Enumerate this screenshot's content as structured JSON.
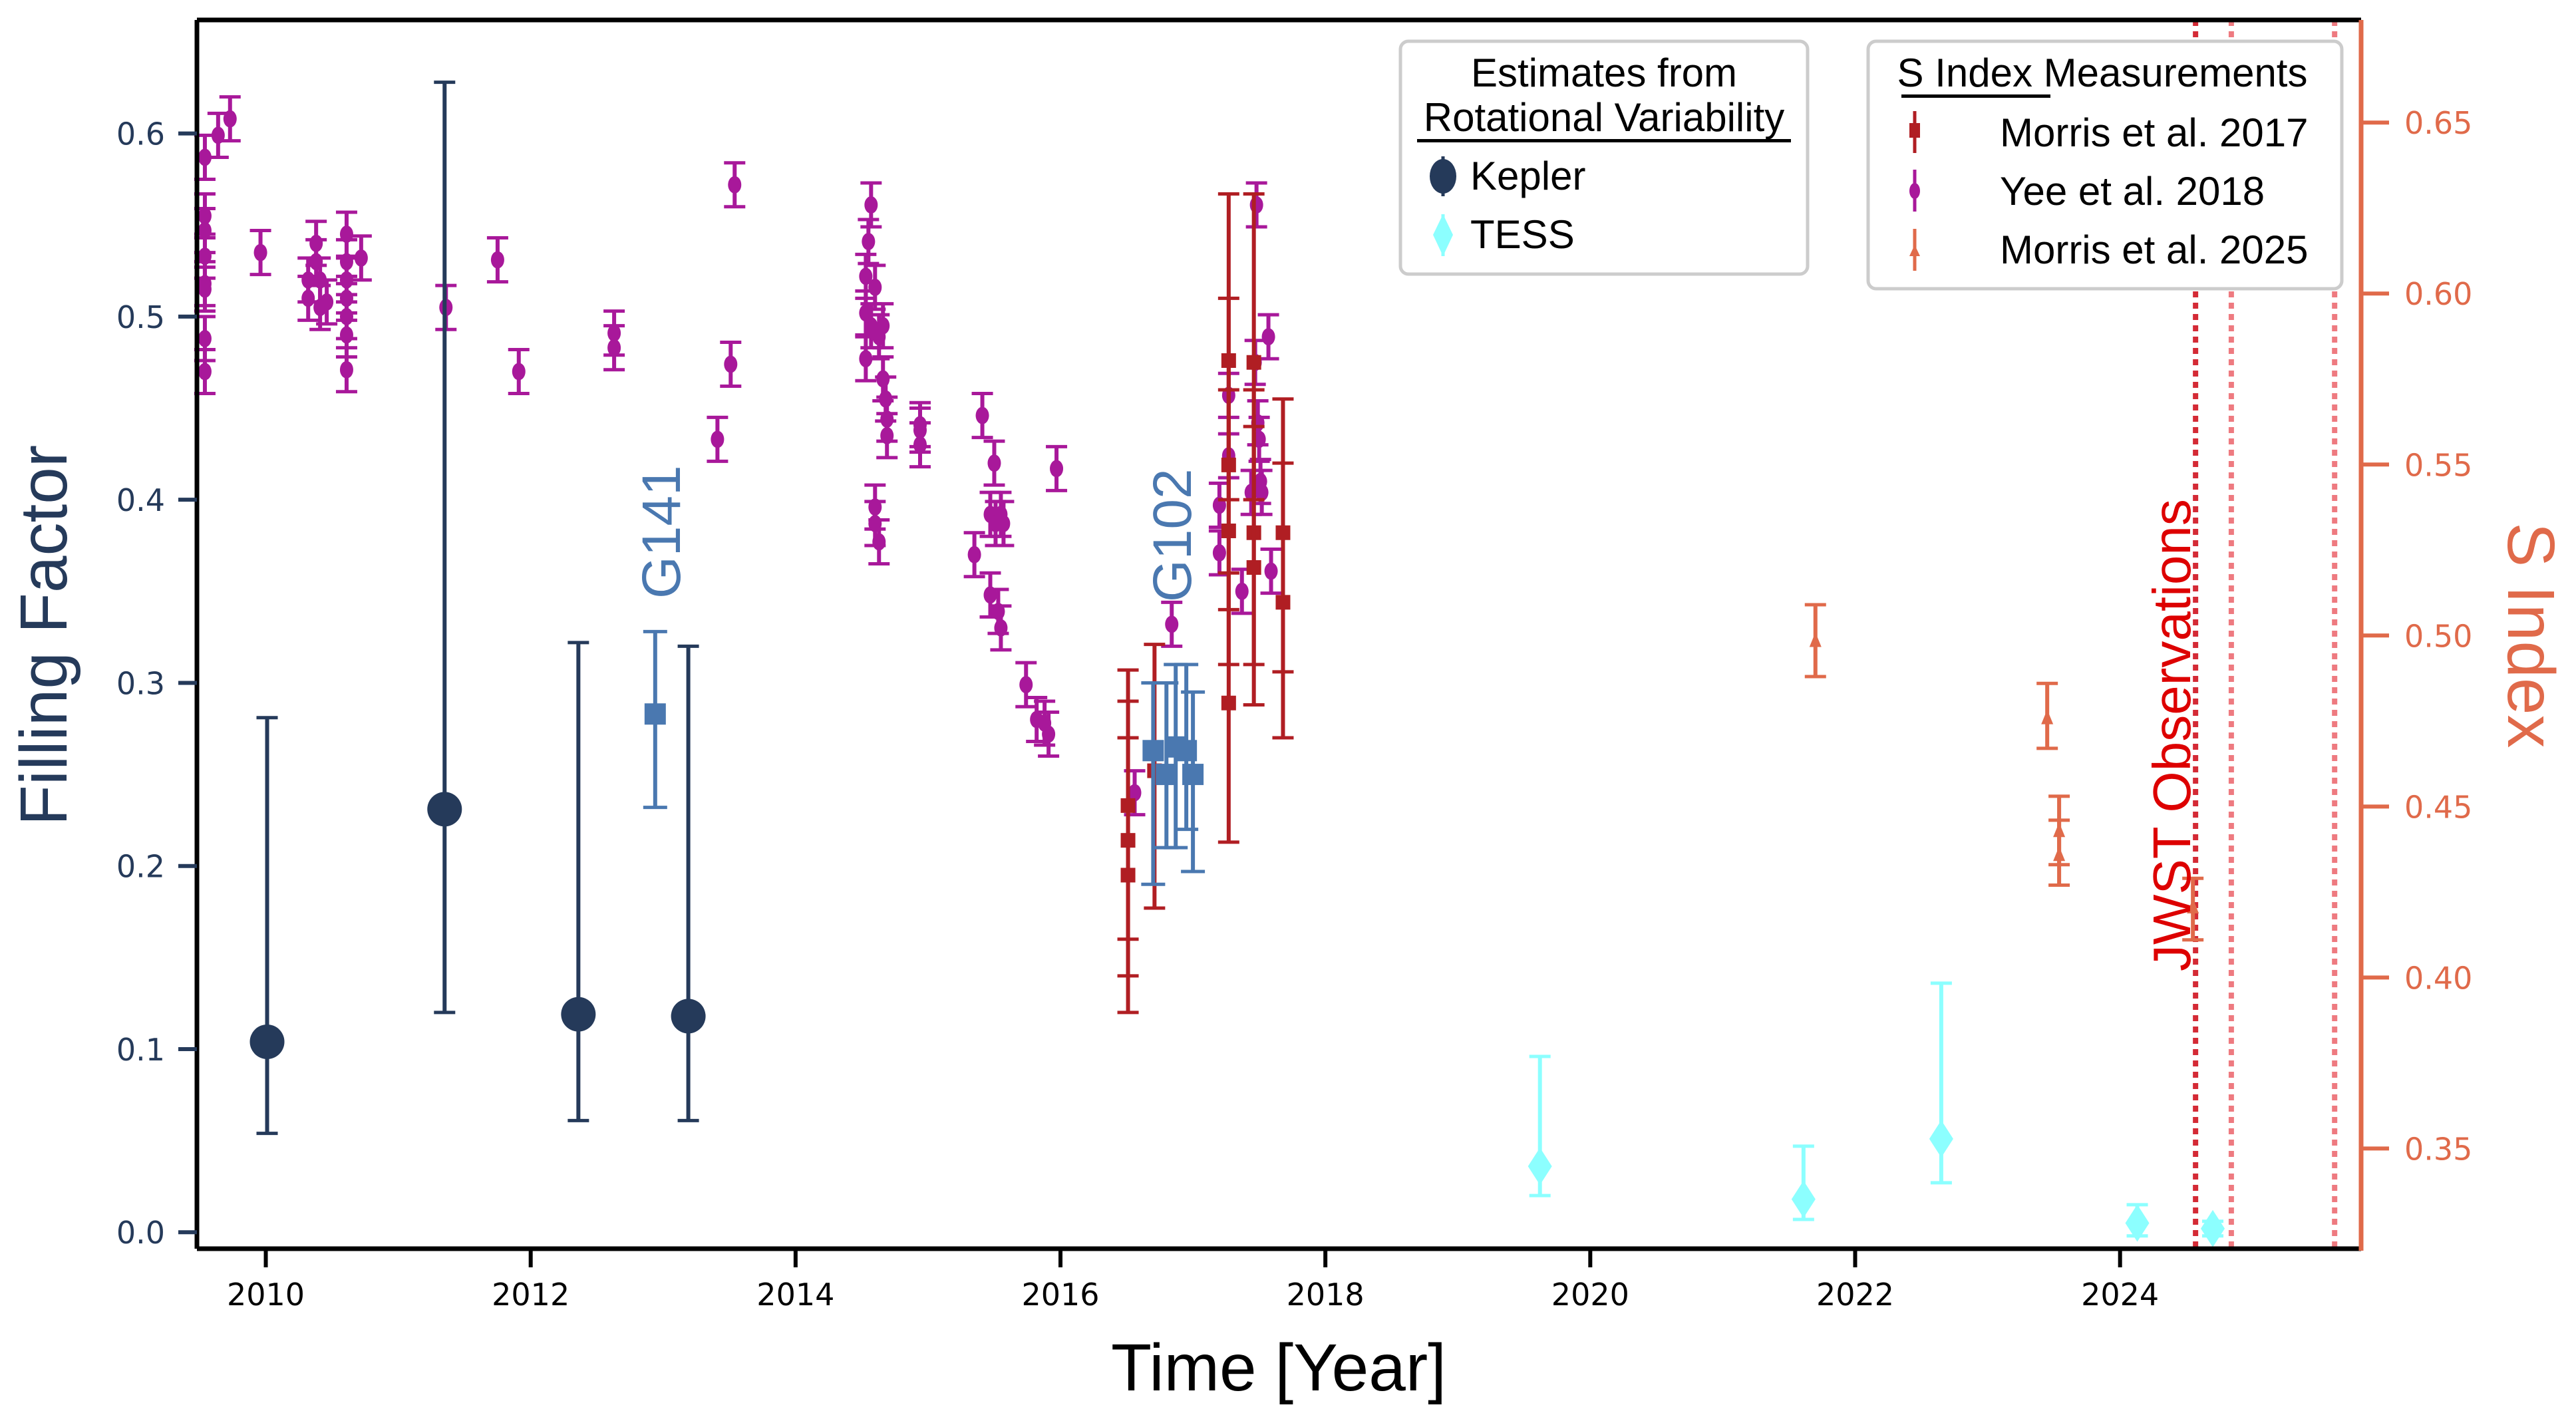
{
  "chart_data": {
    "type": "scatter",
    "xlabel": "Time [Year]",
    "ylabel": "Filling Factor",
    "y2label": "S Index",
    "xlim": [
      2009.48,
      2025.82
    ],
    "ylim": [
      -0.009,
      0.662
    ],
    "y2lim": [
      0.3207,
      0.68
    ],
    "xticks": [
      2010,
      2012,
      2014,
      2016,
      2018,
      2020,
      2022,
      2024
    ],
    "yticks": [
      "0.0",
      "0.1",
      "0.2",
      "0.3",
      "0.4",
      "0.5",
      "0.6"
    ],
    "y2ticks": [
      "0.35",
      "0.40",
      "0.45",
      "0.50",
      "0.55",
      "0.60",
      "0.65"
    ],
    "grid": false,
    "colors": {
      "kepler": "#253a5a",
      "hst": "#4a78b0",
      "tess": "#8cffff",
      "morris2017": "#b01e23",
      "yee2018": "#a8189a",
      "morris2025": "#e06a4a",
      "right_axis": "#e06a4a",
      "jwst": "#e0202a"
    },
    "legends": [
      {
        "title_lines": [
          "Estimates from",
          "Rotational Variability"
        ],
        "position": "top-center",
        "entries": [
          "Kepler",
          "TESS"
        ]
      },
      {
        "title_lines": [
          "S Index Measurements"
        ],
        "position": "top-right",
        "entries": [
          "Morris et al. 2017",
          "Yee et al. 2018",
          "Morris et al. 2025"
        ]
      }
    ],
    "annotations": {
      "g141": "G141",
      "g102": "G102",
      "jwst": "JWST Observations"
    },
    "jwst_observations": [
      2024.57,
      2024.84,
      2025.62
    ],
    "series": [
      {
        "name": "Kepler",
        "axis": "left",
        "marker": "circle",
        "points": [
          [
            2010.01,
            0.104,
            0.054,
            0.281
          ],
          [
            2011.35,
            0.231,
            0.12,
            0.628
          ],
          [
            2012.36,
            0.119,
            0.061,
            0.322
          ],
          [
            2013.19,
            0.118,
            0.061,
            0.32
          ]
        ]
      },
      {
        "key": "hst",
        "axis": "left",
        "marker": "square",
        "points": [
          [
            2012.94,
            0.283,
            0.232,
            0.328
          ],
          [
            2016.7,
            0.263,
            0.19,
            0.3
          ],
          [
            2016.8,
            0.25,
            0.21,
            0.3
          ],
          [
            2016.87,
            0.265,
            0.21,
            0.31
          ],
          [
            2016.95,
            0.263,
            0.22,
            0.31
          ],
          [
            2017.0,
            0.25,
            0.197,
            0.295
          ]
        ]
      },
      {
        "name": "TESS",
        "axis": "left",
        "marker": "diamond",
        "points": [
          [
            2019.62,
            0.036,
            0.02,
            0.096
          ],
          [
            2021.61,
            0.018,
            0.007,
            0.047
          ],
          [
            2022.65,
            0.051,
            0.027,
            0.136
          ],
          [
            2024.13,
            0.005,
            -0.002,
            0.015
          ],
          [
            2024.7,
            0.002,
            -0.002,
            0.006
          ]
        ]
      },
      {
        "name": "Morris et al. 2017",
        "axis": "left",
        "marker": "square",
        "points": [
          [
            2016.51,
            0.233,
            0.16,
            0.307
          ],
          [
            2016.51,
            0.214,
            0.14,
            0.29
          ],
          [
            2016.51,
            0.195,
            0.12,
            0.27
          ],
          [
            2016.71,
            0.252,
            0.177,
            0.321
          ],
          [
            2017.27,
            0.476,
            0.4,
            0.567
          ],
          [
            2017.27,
            0.419,
            0.34,
            0.51
          ],
          [
            2017.27,
            0.383,
            0.31,
            0.46
          ],
          [
            2017.27,
            0.289,
            0.213,
            0.36
          ],
          [
            2017.46,
            0.475,
            0.4,
            0.567
          ],
          [
            2017.46,
            0.382,
            0.31,
            0.46
          ],
          [
            2017.46,
            0.363,
            0.288,
            0.44
          ],
          [
            2017.68,
            0.382,
            0.306,
            0.455
          ],
          [
            2017.68,
            0.344,
            0.27,
            0.42
          ]
        ]
      },
      {
        "name": "Yee et al. 2018",
        "axis": "left",
        "marker": "circle",
        "yerr": 0.012,
        "points": [
          [
            2009.54,
            0.587
          ],
          [
            2009.54,
            0.555
          ],
          [
            2009.54,
            0.547
          ],
          [
            2009.54,
            0.533
          ],
          [
            2009.54,
            0.518
          ],
          [
            2009.54,
            0.515
          ],
          [
            2009.54,
            0.488
          ],
          [
            2009.54,
            0.47
          ],
          [
            2009.64,
            0.599
          ],
          [
            2009.73,
            0.608
          ],
          [
            2009.96,
            0.535
          ],
          [
            2010.32,
            0.52
          ],
          [
            2010.32,
            0.51
          ],
          [
            2010.38,
            0.53
          ],
          [
            2010.38,
            0.54
          ],
          [
            2010.41,
            0.505
          ],
          [
            2010.41,
            0.52
          ],
          [
            2010.46,
            0.508
          ],
          [
            2010.61,
            0.545
          ],
          [
            2010.61,
            0.53
          ],
          [
            2010.61,
            0.52
          ],
          [
            2010.61,
            0.51
          ],
          [
            2010.61,
            0.5
          ],
          [
            2010.61,
            0.49
          ],
          [
            2010.61,
            0.471
          ],
          [
            2010.72,
            0.532
          ],
          [
            2011.36,
            0.505
          ],
          [
            2011.75,
            0.531
          ],
          [
            2011.91,
            0.47
          ],
          [
            2012.63,
            0.491
          ],
          [
            2012.63,
            0.483
          ],
          [
            2013.41,
            0.433
          ],
          [
            2013.51,
            0.474
          ],
          [
            2013.54,
            0.572
          ],
          [
            2014.53,
            0.522
          ],
          [
            2014.55,
            0.541
          ],
          [
            2014.57,
            0.561
          ],
          [
            2014.53,
            0.502
          ],
          [
            2014.53,
            0.477
          ],
          [
            2014.57,
            0.495
          ],
          [
            2014.6,
            0.516
          ],
          [
            2014.63,
            0.489
          ],
          [
            2014.66,
            0.466
          ],
          [
            2014.68,
            0.455
          ],
          [
            2014.69,
            0.444
          ],
          [
            2014.69,
            0.435
          ],
          [
            2014.66,
            0.495
          ],
          [
            2014.6,
            0.396
          ],
          [
            2014.6,
            0.387
          ],
          [
            2014.63,
            0.377
          ],
          [
            2014.94,
            0.441
          ],
          [
            2014.94,
            0.43
          ],
          [
            2014.94,
            0.438
          ],
          [
            2015.35,
            0.37
          ],
          [
            2015.41,
            0.446
          ],
          [
            2015.47,
            0.348
          ],
          [
            2015.53,
            0.339
          ],
          [
            2015.55,
            0.33
          ],
          [
            2015.5,
            0.42
          ],
          [
            2015.47,
            0.392
          ],
          [
            2015.51,
            0.387
          ],
          [
            2015.57,
            0.387
          ],
          [
            2015.55,
            0.392
          ],
          [
            2015.74,
            0.299
          ],
          [
            2015.82,
            0.28
          ],
          [
            2015.88,
            0.278
          ],
          [
            2015.91,
            0.272
          ],
          [
            2015.97,
            0.417
          ],
          [
            2016.56,
            0.24
          ],
          [
            2016.84,
            0.332
          ],
          [
            2017.2,
            0.397
          ],
          [
            2017.2,
            0.371
          ],
          [
            2017.27,
            0.457
          ],
          [
            2017.27,
            0.424
          ],
          [
            2017.37,
            0.35
          ],
          [
            2017.44,
            0.404
          ],
          [
            2017.47,
            0.475
          ],
          [
            2017.48,
            0.561
          ],
          [
            2017.49,
            0.442
          ],
          [
            2017.5,
            0.433
          ],
          [
            2017.52,
            0.404
          ],
          [
            2017.51,
            0.41
          ],
          [
            2017.57,
            0.489
          ],
          [
            2017.59,
            0.361
          ]
        ]
      },
      {
        "name": "Morris et al. 2025",
        "axis": "right",
        "marker": "triangle",
        "points": [
          [
            2021.7,
            0.4986,
            0.488,
            0.509
          ],
          [
            2023.45,
            0.476,
            0.467,
            0.486
          ],
          [
            2023.54,
            0.443,
            0.433,
            0.453
          ],
          [
            2023.54,
            0.436,
            0.427,
            0.446
          ],
          [
            2024.55,
            0.4207,
            0.411,
            0.429
          ]
        ]
      }
    ]
  }
}
